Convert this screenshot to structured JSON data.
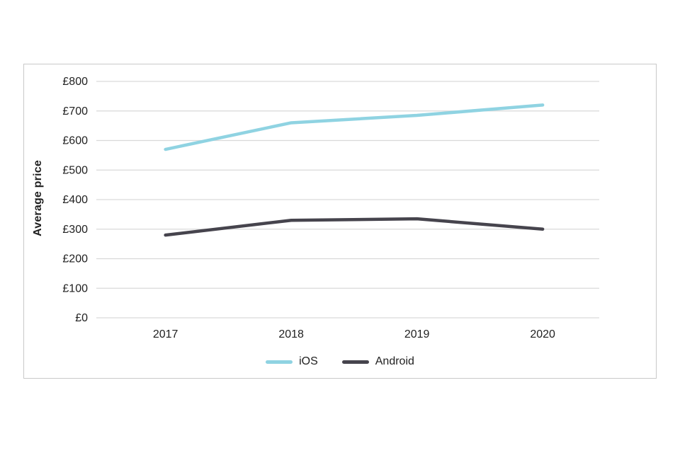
{
  "chart_data": {
    "type": "line",
    "title": "",
    "categories": [
      "2017",
      "2018",
      "2019",
      "2020"
    ],
    "series": [
      {
        "name": "iOS",
        "color": "#8fd3e2",
        "values": [
          570,
          660,
          685,
          720
        ]
      },
      {
        "name": "Android",
        "color": "#46444d",
        "values": [
          280,
          330,
          335,
          300
        ]
      }
    ],
    "xlabel": "",
    "ylabel": "Average price",
    "ylim": [
      0,
      800
    ],
    "ytick_step": 100,
    "yticks": [
      "£0",
      "£100",
      "£200",
      "£300",
      "£400",
      "£500",
      "£600",
      "£700",
      "£800"
    ],
    "grid": "horizontal",
    "legend_position": "bottom",
    "legend": [
      "iOS",
      "Android"
    ]
  },
  "colors": {
    "ios_line": "#8fd3e2",
    "android_line": "#46444d",
    "gridline": "#d9d9d9",
    "text": "#1f1f1f",
    "chart_border": "#c9c9c9"
  }
}
